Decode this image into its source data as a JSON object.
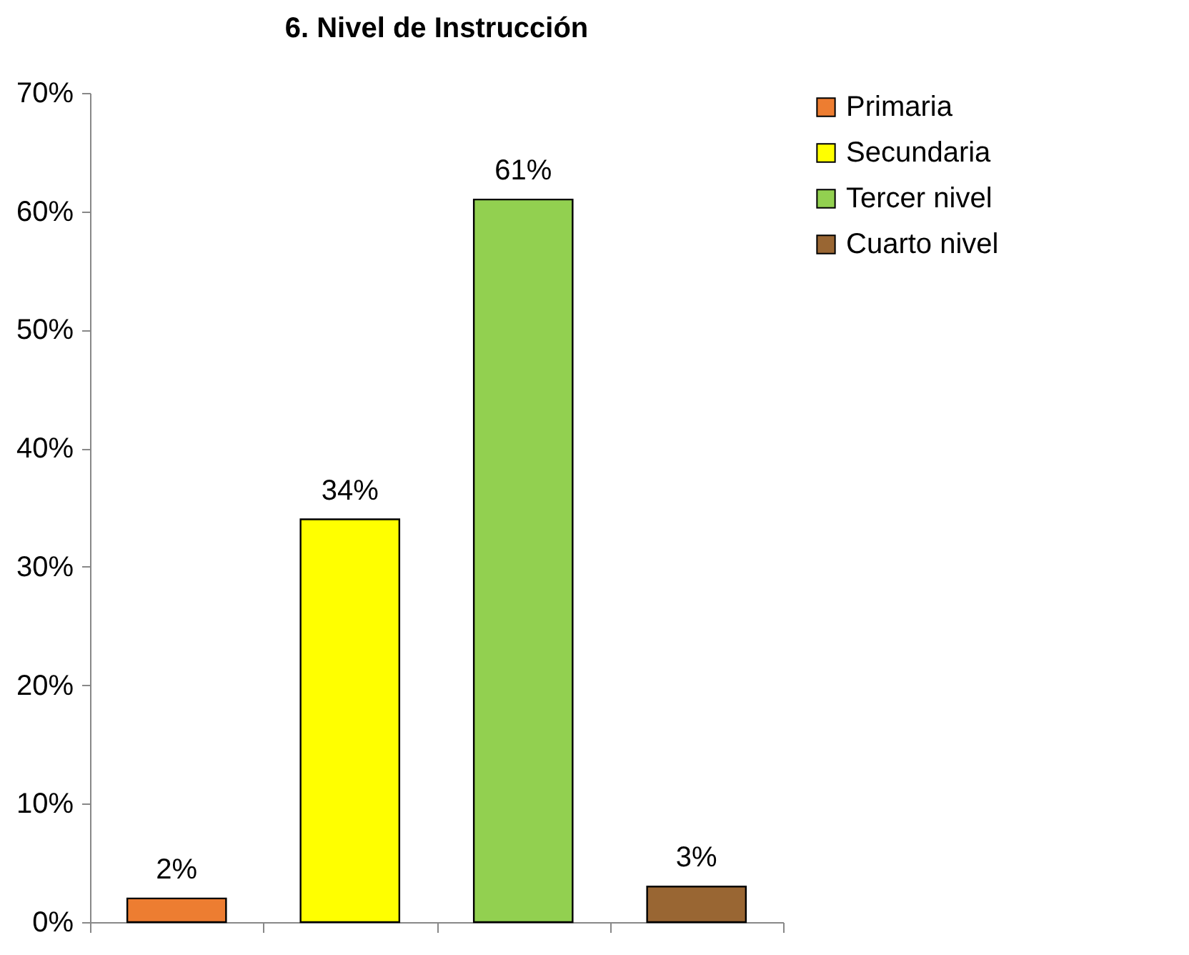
{
  "chart_data": {
    "type": "bar",
    "title": "6. Nivel de Instrucción",
    "categories": [
      null,
      null,
      null,
      null
    ],
    "series": [
      {
        "name": "Primaria",
        "color": "#ed7d31",
        "values": [
          2,
          null,
          null,
          null
        ],
        "value_labels": [
          "2%",
          null,
          null,
          null
        ]
      },
      {
        "name": "Secundaria",
        "color": "#ffff00",
        "values": [
          null,
          34,
          null,
          null
        ],
        "value_labels": [
          null,
          "34%",
          null,
          null
        ]
      },
      {
        "name": "Tercer nivel",
        "color": "#92d050",
        "values": [
          null,
          null,
          61,
          null
        ],
        "value_labels": [
          null,
          null,
          "61%",
          null
        ]
      },
      {
        "name": "Cuarto nivel",
        "color": "#996633",
        "values": [
          null,
          null,
          null,
          3
        ],
        "value_labels": [
          null,
          null,
          null,
          "3%"
        ]
      }
    ],
    "ylim": [
      0,
      70
    ],
    "yticks": [
      {
        "value": 0,
        "label": "0%"
      },
      {
        "value": 10,
        "label": "10%"
      },
      {
        "value": 20,
        "label": "20%"
      },
      {
        "value": 30,
        "label": "30%"
      },
      {
        "value": 40,
        "label": "40%"
      },
      {
        "value": 50,
        "label": "50%"
      },
      {
        "value": 60,
        "label": "60%"
      },
      {
        "value": 70,
        "label": "70%"
      }
    ],
    "grid": false,
    "legend": "right",
    "tick_labels": "y"
  }
}
